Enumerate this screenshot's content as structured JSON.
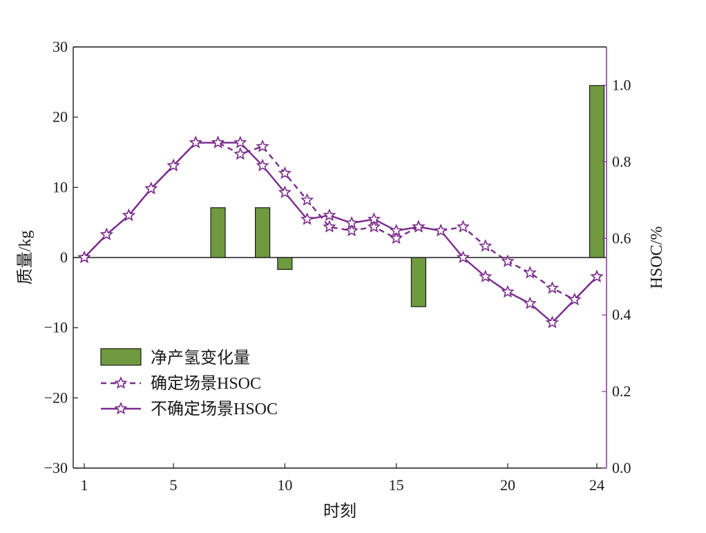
{
  "chart_data": {
    "type": "bar+line",
    "xlabel": "时刻",
    "ylabel_left": "质量/kg",
    "ylabel_right": "HSOC/%",
    "x_range": [
      1,
      24
    ],
    "x_ticks": [
      1,
      5,
      10,
      15,
      20,
      24
    ],
    "x_tick_labels": [
      "1",
      "5",
      "10",
      "15",
      "20",
      "24"
    ],
    "y_left_range": [
      -30,
      30
    ],
    "y_left_ticks": [
      -30,
      -20,
      -10,
      0,
      10,
      20,
      30
    ],
    "y_left_tick_labels": [
      "−30",
      "−20",
      "−10",
      "0",
      "10",
      "20",
      "30"
    ],
    "y_right_range": [
      0,
      1.1
    ],
    "y_right_ticks": [
      0,
      0.2,
      0.4,
      0.6,
      0.8,
      1.0
    ],
    "y_right_tick_labels": [
      "0.0",
      "0.2",
      "0.4",
      "0.6",
      "0.8",
      "1.0"
    ],
    "grid": false,
    "legend_position": "bottom-left",
    "colors": {
      "bar_fill": "#6f9a3f",
      "bar_stroke": "#1a1a1a",
      "line": "#7a2a8c",
      "right_axis": "#8a3a9c"
    },
    "bars": {
      "name": "净产氢变化量",
      "x": [
        7,
        9,
        10,
        16,
        24
      ],
      "values": [
        7.1,
        7.1,
        -1.7,
        -7.0,
        24.5
      ]
    },
    "series": [
      {
        "name": "确定场景HSOC",
        "style": "dashed",
        "x": [
          1,
          2,
          3,
          4,
          5,
          6,
          7,
          8,
          9,
          10,
          11,
          12,
          13,
          14,
          15,
          16,
          17,
          18,
          19,
          20,
          21,
          22,
          23,
          24
        ],
        "values": [
          0.55,
          0.61,
          0.66,
          0.73,
          0.79,
          0.85,
          0.85,
          0.82,
          0.84,
          0.77,
          0.7,
          0.63,
          0.62,
          0.63,
          0.6,
          0.63,
          0.62,
          0.63,
          0.58,
          0.54,
          0.51,
          0.47,
          0.44,
          0.5
        ]
      },
      {
        "name": "不确定场景HSOC",
        "style": "solid",
        "x": [
          1,
          2,
          3,
          4,
          5,
          6,
          7,
          8,
          9,
          10,
          11,
          12,
          13,
          14,
          15,
          16,
          17,
          18,
          19,
          20,
          21,
          22,
          23,
          24
        ],
        "values": [
          0.55,
          0.61,
          0.66,
          0.73,
          0.79,
          0.85,
          0.85,
          0.85,
          0.79,
          0.72,
          0.65,
          0.66,
          0.64,
          0.65,
          0.62,
          0.63,
          0.62,
          0.55,
          0.5,
          0.46,
          0.43,
          0.38,
          0.44,
          0.5
        ]
      }
    ]
  }
}
